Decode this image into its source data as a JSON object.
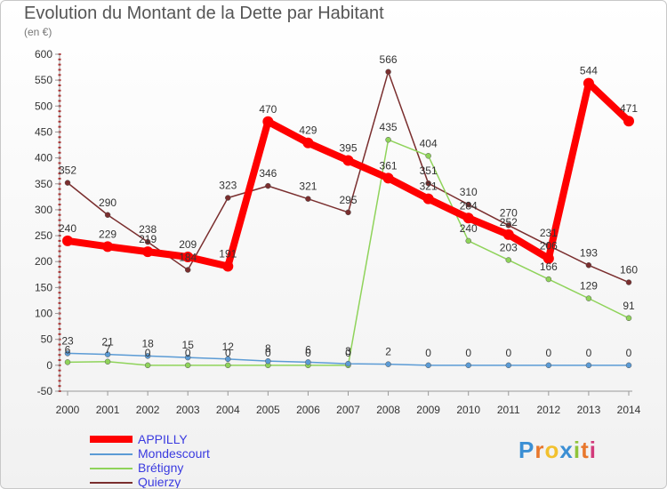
{
  "chart_data": {
    "type": "line",
    "title": "Evolution du Montant de la Dette par Habitant",
    "subtitle": "(en €)",
    "x": [
      "2000",
      "2001",
      "2002",
      "2003",
      "2004",
      "2005",
      "2006",
      "2007",
      "2008",
      "2009",
      "2010",
      "2011",
      "2012",
      "2013",
      "2014"
    ],
    "yticks": [
      -50,
      0,
      50,
      100,
      150,
      200,
      250,
      300,
      350,
      400,
      450,
      500,
      550,
      600
    ],
    "ylim": [
      -50,
      600
    ],
    "grid": false,
    "legend_placement": "bottom-left",
    "series": [
      {
        "name": "APPILLY",
        "color": "#ff0000",
        "values": [
          240,
          229,
          219,
          209,
          191,
          470,
          429,
          395,
          361,
          321,
          284,
          252,
          206,
          544,
          471
        ],
        "labels": [
          "240",
          "229",
          "219",
          "209",
          "191",
          "470",
          "429",
          "395",
          "361",
          "321",
          "284",
          "252",
          "206",
          "544",
          "471"
        ]
      },
      {
        "name": "Mondescourt",
        "color": "#5b9bd5",
        "values": [
          23,
          21,
          18,
          15,
          12,
          8,
          6,
          3,
          2,
          0,
          0,
          0,
          0,
          0,
          0
        ],
        "labels": [
          "23",
          "21",
          "18",
          "15",
          "12",
          "8",
          "6",
          "3",
          "2",
          "0",
          "0",
          "0",
          "0",
          "0",
          "0"
        ]
      },
      {
        "name": "Brétigny",
        "color": "#8fd35a",
        "values": [
          6,
          7,
          0,
          0,
          0,
          0,
          0,
          0,
          435,
          404,
          240,
          203,
          166,
          129,
          91
        ],
        "labels": [
          "6",
          "7",
          "0",
          "0",
          "0",
          "0",
          "0",
          "0",
          "435",
          "404",
          "240",
          "203",
          "166",
          "129",
          "91"
        ]
      },
      {
        "name": "Quierzy",
        "color": "#7a2e2e",
        "values": [
          352,
          290,
          238,
          184,
          323,
          346,
          321,
          295,
          566,
          351,
          310,
          270,
          231,
          193,
          160
        ],
        "labels": [
          "352",
          "290",
          "238",
          "184",
          "323",
          "346",
          "321",
          "295",
          "566",
          "351",
          "310",
          "270",
          "231",
          "193",
          "160"
        ]
      }
    ]
  },
  "legend": {
    "items": [
      {
        "label": "APPILLY"
      },
      {
        "label": "Mondescourt"
      },
      {
        "label": "Brétigny"
      },
      {
        "label": "Quierzy"
      }
    ]
  },
  "logo": {
    "text": "Proxiti"
  }
}
